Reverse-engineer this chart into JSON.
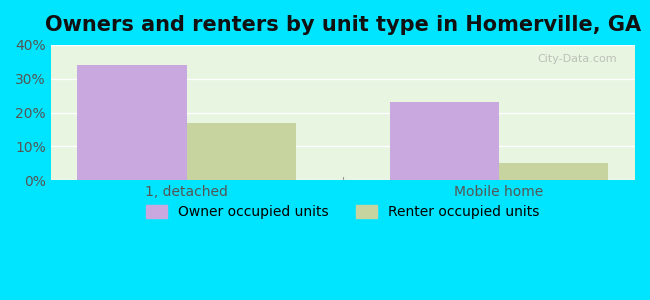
{
  "title": "Owners and renters by unit type in Homerville, GA",
  "categories": [
    "1, detached",
    "Mobile home"
  ],
  "owner_values": [
    34,
    23
  ],
  "renter_values": [
    17,
    5
  ],
  "owner_color": "#c9a8e0",
  "renter_color": "#c8d4a0",
  "background_color": "#e8f5e0",
  "outer_background": "#00e5ff",
  "ylim": [
    0,
    40
  ],
  "yticks": [
    0,
    10,
    20,
    30,
    40
  ],
  "ytick_labels": [
    "0%",
    "10%",
    "20%",
    "30%",
    "40%"
  ],
  "bar_width": 0.35,
  "legend_owner": "Owner occupied units",
  "legend_renter": "Renter occupied units",
  "watermark": "City-Data.com",
  "title_fontsize": 15,
  "tick_fontsize": 10,
  "legend_fontsize": 10
}
